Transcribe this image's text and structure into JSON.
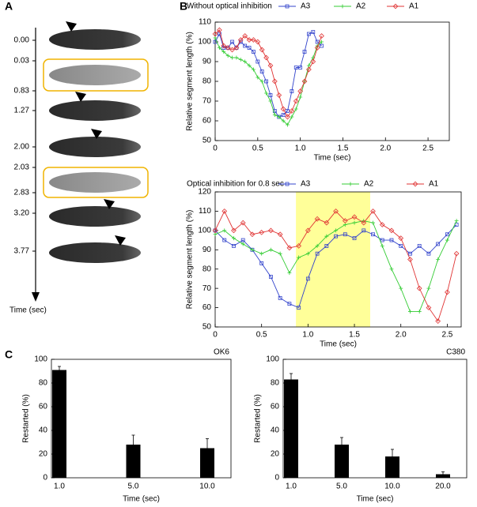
{
  "panel_labels": [
    "A",
    "B",
    "C"
  ],
  "timeline": {
    "labels": [
      "0.00",
      "0.03",
      "0.83",
      "1.27",
      "2.00",
      "2.03",
      "2.83",
      "3.20",
      "3.77"
    ],
    "axis_label": "Time (sec)"
  },
  "chart_data": [
    {
      "type": "line",
      "title": "Without optical inhibition",
      "xlabel": "Time (sec)",
      "ylabel": "Relative segment length (%)",
      "legend": "top",
      "x": [
        0,
        0.05,
        0.1,
        0.15,
        0.2,
        0.25,
        0.3,
        0.35,
        0.4,
        0.45,
        0.5,
        0.55,
        0.6,
        0.65,
        0.7,
        0.75,
        0.8,
        0.85,
        0.9,
        0.95,
        1,
        1.05,
        1.1,
        1.15,
        1.2,
        1.25
      ],
      "series": [
        {
          "name": "A3",
          "color": "#3344cc",
          "marker": "square",
          "values": [
            100,
            104,
            97,
            97,
            100,
            97,
            100,
            98,
            97,
            95,
            90,
            85,
            80,
            73,
            65,
            62,
            63,
            65,
            75,
            87,
            87,
            95,
            104,
            105,
            100,
            98
          ]
        },
        {
          "name": "A2",
          "color": "#33cc33",
          "marker": "plus",
          "values": [
            102,
            97,
            95,
            93,
            92,
            92,
            91,
            90,
            88,
            86,
            82,
            80,
            74,
            70,
            63,
            62,
            60,
            58,
            62,
            66,
            72,
            80,
            88,
            92,
            98,
            100
          ]
        },
        {
          "name": "A1",
          "color": "#e03333",
          "marker": "diamond",
          "values": [
            104,
            106,
            98,
            97,
            96,
            97,
            101,
            103,
            101,
            101,
            100,
            96,
            92,
            88,
            80,
            73,
            66,
            62,
            65,
            70,
            75,
            80,
            86,
            90,
            97,
            103
          ]
        }
      ],
      "xlim": [
        0,
        2.75
      ],
      "ylim": [
        50,
        110
      ],
      "xticks": [
        0,
        0.5,
        {
          "value": 1,
          "label": "1.0"
        },
        1.5,
        {
          "value": 2,
          "label": "2.0"
        },
        2.5
      ],
      "yticks": [
        50,
        60,
        70,
        80,
        90,
        100,
        110
      ]
    },
    {
      "type": "line",
      "title": "Optical inhibition for 0.8 sec",
      "xlabel": "Time (sec)",
      "ylabel": "Relative segment length (%)",
      "legend": "top",
      "highlight": {
        "range": [
          0.87,
          1.67
        ],
        "color": "#ffff99"
      },
      "x": [
        0,
        0.1,
        0.2,
        0.3,
        0.4,
        0.5,
        0.6,
        0.7,
        0.8,
        0.9,
        1,
        1.1,
        1.2,
        1.3,
        1.4,
        1.5,
        1.6,
        1.7,
        1.8,
        1.9,
        2,
        2.1,
        2.2,
        2.3,
        2.4,
        2.5,
        2.6
      ],
      "series": [
        {
          "name": "A3",
          "color": "#3344cc",
          "marker": "square",
          "values": [
            100,
            95,
            92,
            95,
            90,
            83,
            76,
            65,
            62,
            60,
            75,
            88,
            92,
            97,
            98,
            96,
            100,
            98,
            95,
            95,
            92,
            88,
            92,
            88,
            93,
            98,
            103
          ]
        },
        {
          "name": "A2",
          "color": "#33cc33",
          "marker": "plus",
          "values": [
            98,
            100,
            96,
            93,
            90,
            88,
            90,
            88,
            78,
            86,
            88,
            92,
            97,
            100,
            103,
            104,
            105,
            104,
            92,
            80,
            70,
            58,
            58,
            70,
            85,
            95,
            105
          ]
        },
        {
          "name": "A1",
          "color": "#e03333",
          "marker": "diamond",
          "values": [
            100,
            110,
            100,
            104,
            98,
            99,
            100,
            98,
            91,
            92,
            100,
            106,
            104,
            110,
            105,
            107,
            104,
            110,
            103,
            100,
            96,
            85,
            70,
            60,
            53,
            68,
            88
          ]
        }
      ],
      "xlim": [
        0,
        2.65
      ],
      "ylim": [
        50,
        120
      ],
      "xticks": [
        0,
        0.5,
        {
          "value": 1,
          "label": "1.0"
        },
        1.5,
        {
          "value": 2,
          "label": "2.0"
        },
        2.5
      ],
      "yticks": [
        50,
        60,
        70,
        80,
        90,
        100,
        110,
        120
      ]
    },
    {
      "type": "bar",
      "title": "OK6",
      "xlabel": "Time (sec)",
      "ylabel": "Restarted (%)",
      "color": "#000000",
      "categories": [
        "1.0",
        "5.0",
        "10.0"
      ],
      "values": [
        91,
        28,
        25
      ],
      "errors": [
        3,
        8,
        8
      ],
      "ylim": [
        0,
        100
      ],
      "yticks": [
        0,
        20,
        40,
        60,
        80,
        100
      ]
    },
    {
      "type": "bar",
      "title": "C380",
      "xlabel": "Time (sec)",
      "ylabel": "Restarted (%)",
      "color": "#000000",
      "categories": [
        "1.0",
        "5.0",
        "10.0",
        "20.0"
      ],
      "values": [
        83,
        28,
        18,
        3
      ],
      "errors": [
        5,
        6,
        6,
        2
      ],
      "ylim": [
        0,
        100
      ],
      "yticks": [
        0,
        20,
        40,
        60,
        80,
        100
      ]
    }
  ]
}
